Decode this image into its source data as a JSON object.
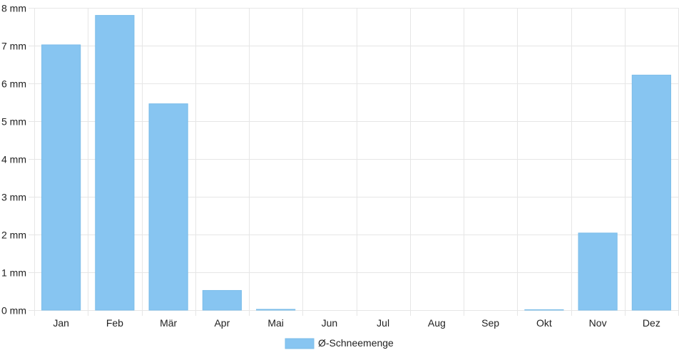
{
  "chart_data": {
    "type": "bar",
    "categories": [
      "Jan",
      "Feb",
      "Mär",
      "Apr",
      "Mai",
      "Jun",
      "Jul",
      "Aug",
      "Sep",
      "Okt",
      "Nov",
      "Dez"
    ],
    "series": [
      {
        "name": "Ø-Schneemenge",
        "values": [
          7.02,
          7.8,
          5.46,
          0.52,
          0.02,
          0,
          0,
          0,
          0,
          0.01,
          2.04,
          6.22
        ],
        "color": "#87c5f1"
      }
    ],
    "yticks": [
      "0 mm",
      "1 mm",
      "2 mm",
      "3 mm",
      "4 mm",
      "5 mm",
      "6 mm",
      "7 mm",
      "8 mm"
    ],
    "ylim": [
      0,
      8
    ],
    "grid": true,
    "legend_position": "bottom-center",
    "colors": {
      "bar": "#87c5f1",
      "bar_border": "#7bbde9",
      "grid": "#e6e6e6",
      "axis": "#cccccc",
      "text": "#222222"
    }
  }
}
